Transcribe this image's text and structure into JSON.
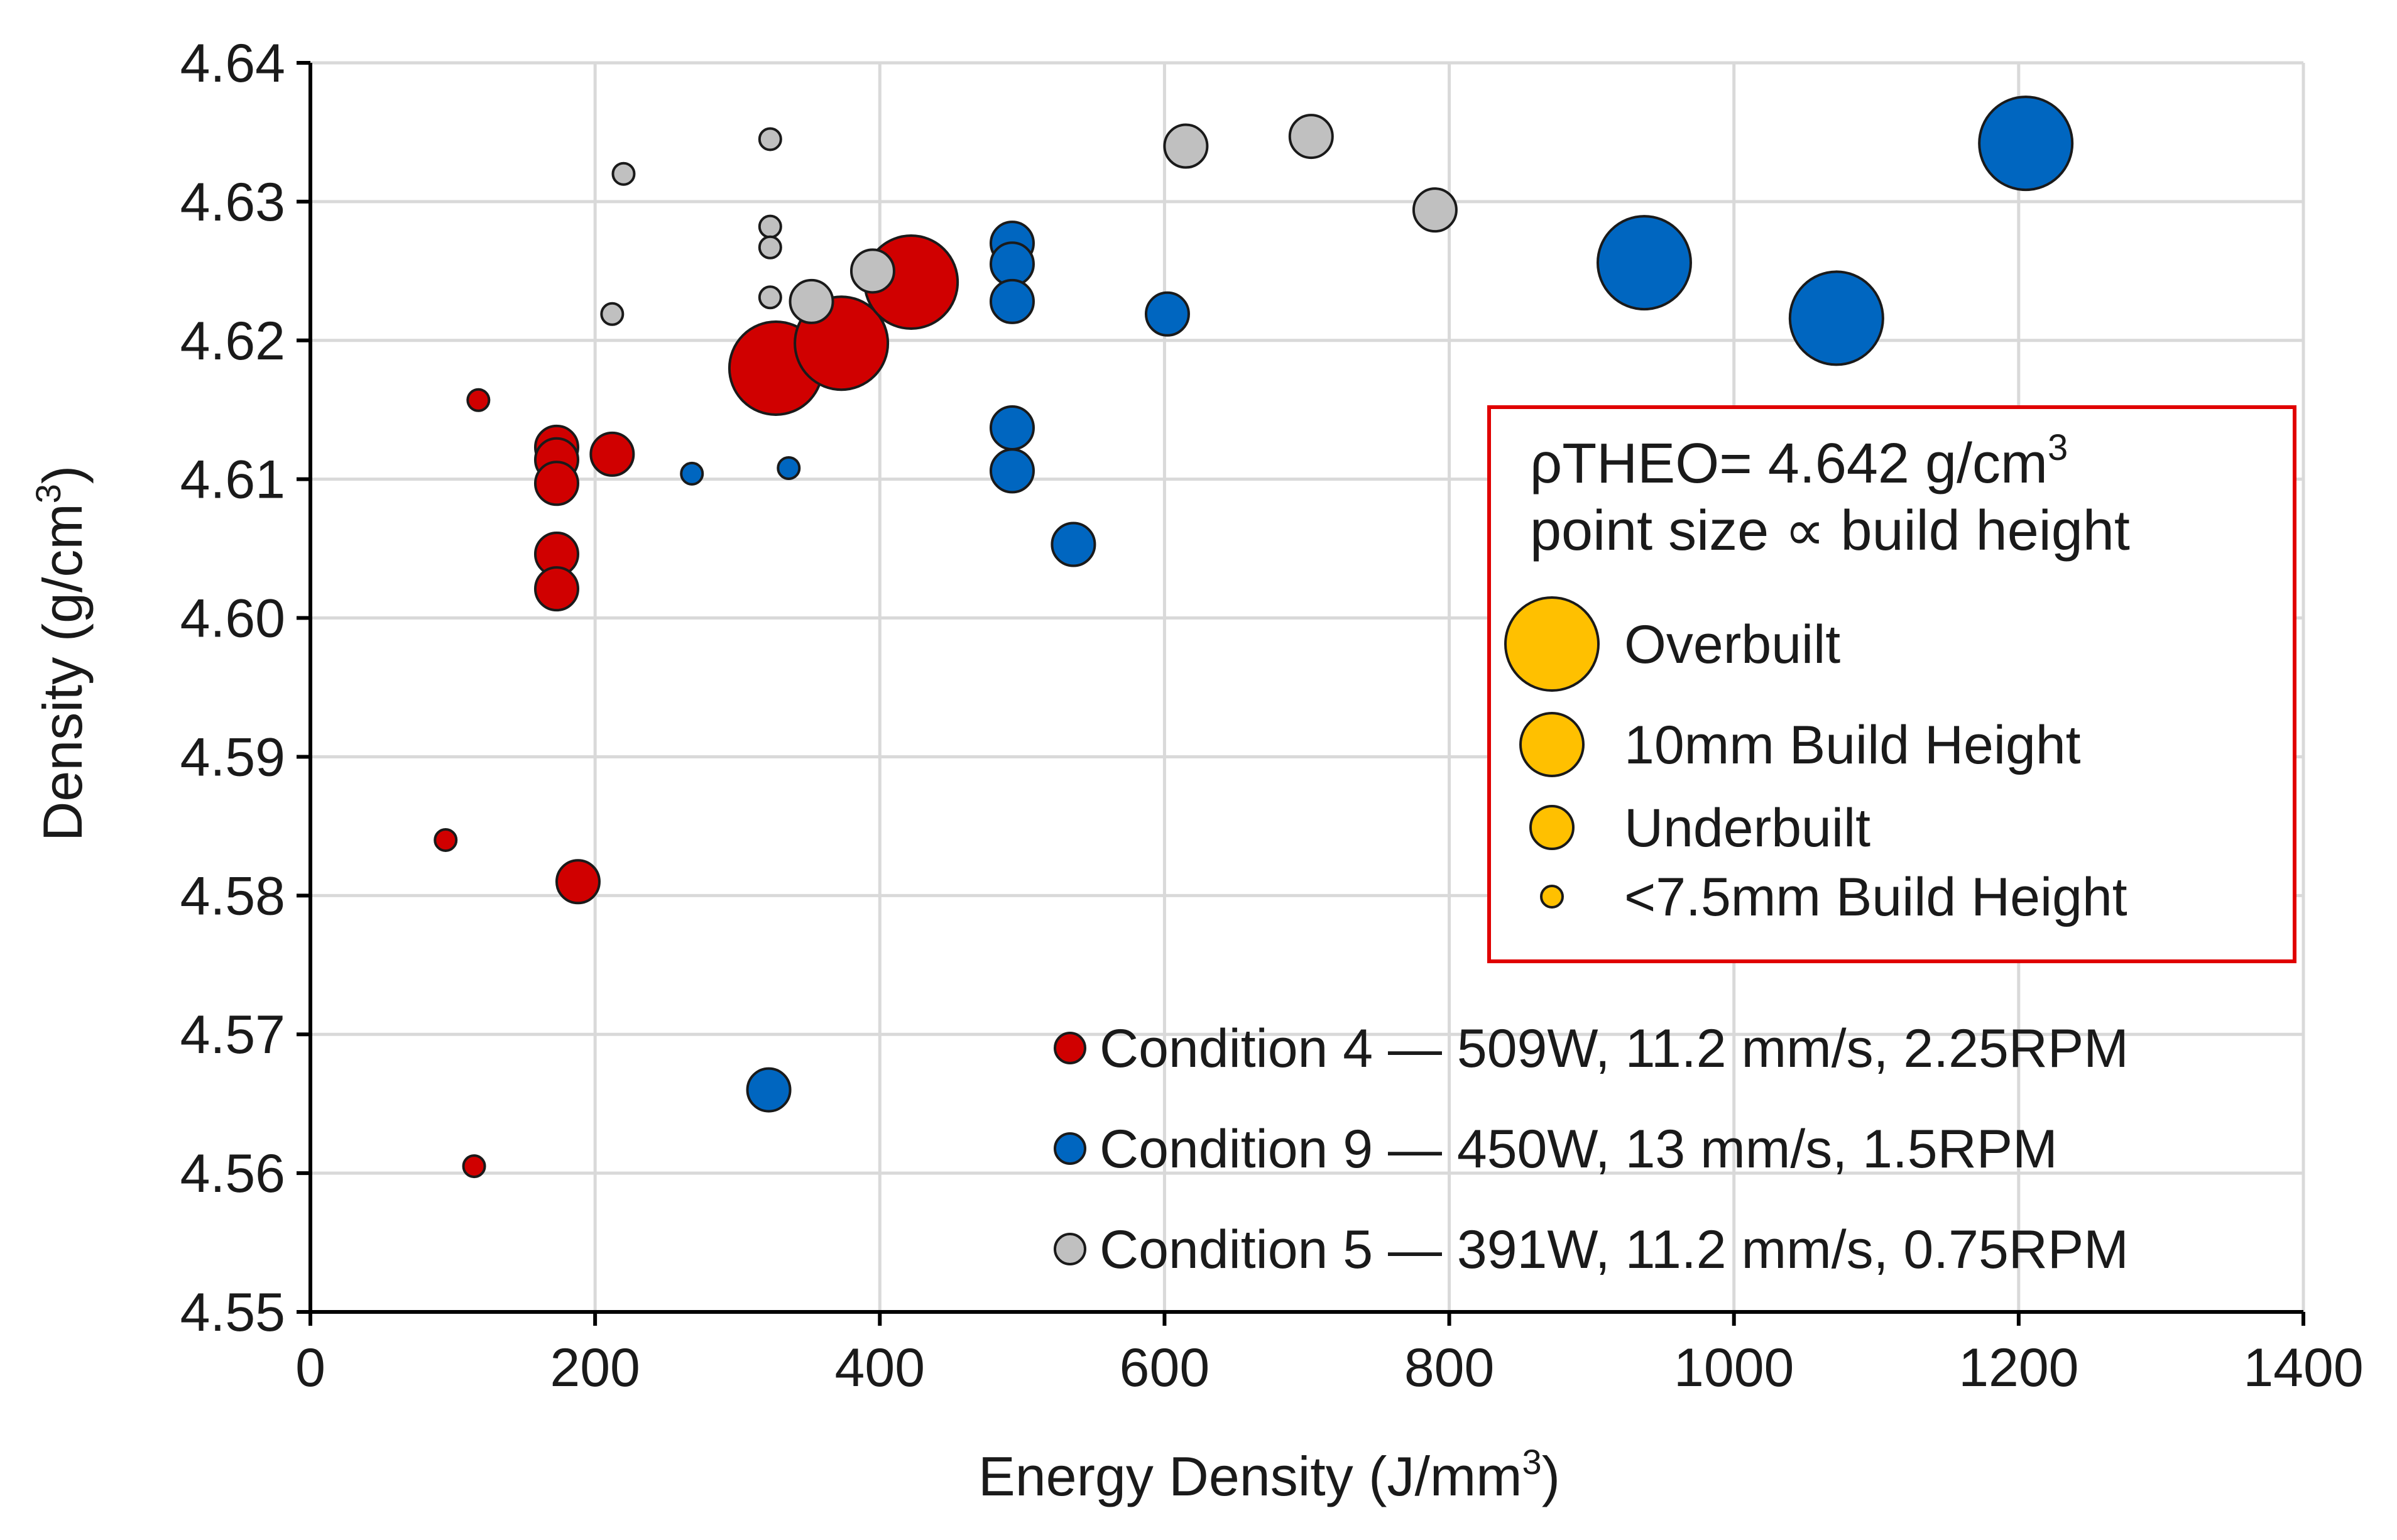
{
  "chart_data": {
    "type": "scatter",
    "title": "",
    "xlabel": "Energy Density (J/mm",
    "xlabel_sup": "3",
    "xlabel_suffix": ")",
    "ylabel": "Density (g/cm",
    "ylabel_sup": "3",
    "ylabel_suffix": ")",
    "xlim": [
      0,
      1400
    ],
    "ylim": [
      4.55,
      4.64
    ],
    "xticks": [
      0,
      200,
      400,
      600,
      800,
      1000,
      1200,
      1400
    ],
    "xtick_labels": [
      "0",
      "200",
      "400",
      "600",
      "800",
      "1000",
      "1200",
      "1400"
    ],
    "yticks": [
      4.55,
      4.56,
      4.57,
      4.58,
      4.59,
      4.6,
      4.61,
      4.62,
      4.63,
      4.64
    ],
    "ytick_labels": [
      "4.55",
      "4.56",
      "4.57",
      "4.58",
      "4.59",
      "4.60",
      "4.61",
      "4.62",
      "4.63",
      "4.64"
    ],
    "grid": true,
    "size_encoding": "point size ∝ build height",
    "series": [
      {
        "name": "Condition 4 — 509W, 11.2 mm/s, 2.25RPM",
        "color": "#d00000",
        "points": [
          {
            "x": 95,
            "y": 4.584,
            "size": 1
          },
          {
            "x": 115,
            "y": 4.5605,
            "size": 1
          },
          {
            "x": 118,
            "y": 4.6157,
            "size": 1
          },
          {
            "x": 173,
            "y": 4.6123,
            "size": 2
          },
          {
            "x": 173,
            "y": 4.6114,
            "size": 2
          },
          {
            "x": 173,
            "y": 4.6097,
            "size": 2
          },
          {
            "x": 173,
            "y": 4.6046,
            "size": 2
          },
          {
            "x": 173,
            "y": 4.6021,
            "size": 2
          },
          {
            "x": 188,
            "y": 4.581,
            "size": 2
          },
          {
            "x": 212,
            "y": 4.6118,
            "size": 2
          },
          {
            "x": 327,
            "y": 4.618,
            "size": 4
          },
          {
            "x": 373,
            "y": 4.6198,
            "size": 4
          },
          {
            "x": 422,
            "y": 4.6242,
            "size": 4
          }
        ]
      },
      {
        "name": "Condition 9 — 450W, 13 mm/s, 1.5RPM",
        "color": "#0066c0",
        "points": [
          {
            "x": 268,
            "y": 4.6104,
            "size": 1
          },
          {
            "x": 336,
            "y": 4.6108,
            "size": 1
          },
          {
            "x": 322,
            "y": 4.566,
            "size": 2
          },
          {
            "x": 493,
            "y": 4.627,
            "size": 2
          },
          {
            "x": 493,
            "y": 4.6255,
            "size": 2
          },
          {
            "x": 493,
            "y": 4.6228,
            "size": 2
          },
          {
            "x": 493,
            "y": 4.6137,
            "size": 2
          },
          {
            "x": 493,
            "y": 4.6106,
            "size": 2
          },
          {
            "x": 536,
            "y": 4.6053,
            "size": 2
          },
          {
            "x": 602,
            "y": 4.6219,
            "size": 2
          },
          {
            "x": 937,
            "y": 4.6256,
            "size": 4
          },
          {
            "x": 1072,
            "y": 4.6216,
            "size": 4
          },
          {
            "x": 1205,
            "y": 4.6342,
            "size": 4
          }
        ]
      },
      {
        "name": "Condition 5 — 391W, 11.2 mm/s, 0.75RPM",
        "color": "#c0c0c0",
        "points": [
          {
            "x": 212,
            "y": 4.6219,
            "size": 1
          },
          {
            "x": 220,
            "y": 4.632,
            "size": 1
          },
          {
            "x": 323,
            "y": 4.6345,
            "size": 1
          },
          {
            "x": 323,
            "y": 4.6282,
            "size": 1
          },
          {
            "x": 323,
            "y": 4.6267,
            "size": 1
          },
          {
            "x": 323,
            "y": 4.6231,
            "size": 1
          },
          {
            "x": 352,
            "y": 4.6228,
            "size": 2
          },
          {
            "x": 395,
            "y": 4.625,
            "size": 2
          },
          {
            "x": 615,
            "y": 4.634,
            "size": 2
          },
          {
            "x": 703,
            "y": 4.6347,
            "size": 2
          },
          {
            "x": 790,
            "y": 4.6294,
            "size": 2
          }
        ]
      }
    ]
  },
  "note": {
    "line1_prefix": "ρTHEO= 4.642 g/cm",
    "line1_sup": "3",
    "line2": "point size ∝ build height",
    "border_color": "#e00000"
  },
  "size_legend": {
    "color": "#ffc000",
    "items": [
      {
        "label": "Overbuilt",
        "size": 4
      },
      {
        "label": "10mm Build Height",
        "size": 3
      },
      {
        "label": "Underbuilt",
        "size": 2
      },
      {
        "label": "<7.5mm Build Height",
        "size": 1
      }
    ]
  }
}
